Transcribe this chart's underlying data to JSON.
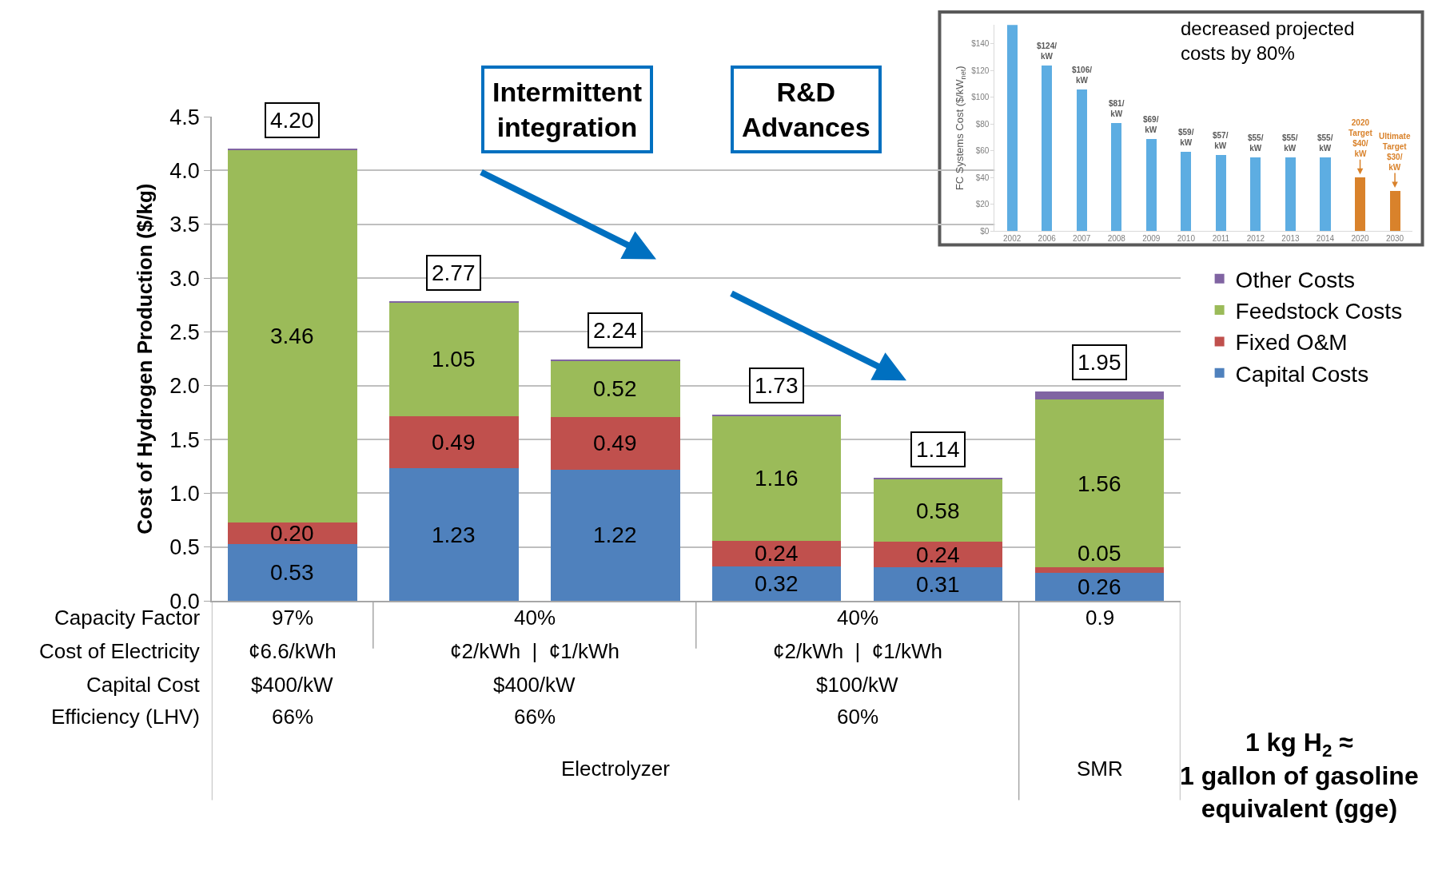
{
  "chart_data": [
    {
      "type": "bar",
      "stacked": true,
      "ylabel": "Cost of Hydrogen Production ($/kg)",
      "categories": [
        null,
        null,
        null,
        null,
        null,
        null
      ],
      "series": [
        {
          "name": "Capital Costs",
          "color": "#4f81bd",
          "values": [
            0.53,
            1.23,
            1.22,
            0.32,
            0.31,
            0.26
          ],
          "value_labels": [
            "0.53",
            "1.23",
            "1.22",
            "0.32",
            "0.31",
            "0.26"
          ]
        },
        {
          "name": "Fixed O&M",
          "color": "#c0504d",
          "values": [
            0.2,
            0.49,
            0.49,
            0.24,
            0.24,
            0.05
          ],
          "value_labels": [
            "0.20",
            "0.49",
            "0.49",
            "0.24",
            "0.24",
            "0.05"
          ]
        },
        {
          "name": "Feedstock Costs",
          "color": "#9bbb59",
          "values": [
            3.46,
            1.05,
            0.52,
            1.16,
            0.58,
            1.56
          ],
          "value_labels": [
            "3.46",
            "1.05",
            "0.52",
            "1.16",
            "0.58",
            "1.56"
          ]
        },
        {
          "name": "Other Costs",
          "color": "#8064a2",
          "values": [
            0.01,
            0.01,
            0.01,
            0.01,
            0.01,
            0.08
          ]
        }
      ],
      "totals": [
        "4.20",
        "2.77",
        "2.24",
        "1.73",
        "1.14",
        "1.95"
      ],
      "ylim": [
        0,
        4.5
      ],
      "yticks": [
        {
          "value": 0,
          "label": "0.0"
        },
        {
          "value": 0.5,
          "label": "0.5"
        },
        {
          "value": 1,
          "label": "1.0"
        },
        {
          "value": 1.5,
          "label": "1.5"
        },
        {
          "value": 2,
          "label": "2.0"
        },
        {
          "value": 2.5,
          "label": "2.5"
        },
        {
          "value": 3,
          "label": "3.0"
        },
        {
          "value": 3.5,
          "label": "3.5"
        },
        {
          "value": 4,
          "label": "4.0"
        },
        {
          "value": 4.5,
          "label": "4.5"
        }
      ],
      "grid": "y",
      "legend": "right",
      "annotations": [
        "Capacity Factor",
        "Cost of Electricity",
        "Capital Cost",
        "Efficiency (LHV)",
        "97%",
        "¢6.6/kWh",
        "$400/kW",
        "66%",
        "40%",
        "¢2/kWh  |  ¢1/kWh",
        "$400/kW",
        "66%",
        "40%",
        "¢2/kWh  |  ¢1/kWh",
        "$100/kW",
        "60%",
        "0.9",
        "Electrolyzer",
        "SMR",
        "Intermittent\nintegration",
        "R&D\nAdvances",
        "1 kg H$_{2}$ ≈\n1 gallon of gasoline\nequivalent (gge)"
      ]
    },
    {
      "type": "bar",
      "ylabel": "FC Systems Cost ($/kW$_{net}$)",
      "categories": [
        "2002",
        "2006",
        "2007",
        "2008",
        "2009",
        "2010",
        "2011",
        "2012",
        "2013",
        "2014",
        "2020",
        "2030"
      ],
      "values": [
        154,
        124,
        106,
        81,
        69,
        59,
        57,
        55,
        55,
        55,
        40,
        30
      ],
      "colors": [
        "#5dade2",
        "#5dade2",
        "#5dade2",
        "#5dade2",
        "#5dade2",
        "#5dade2",
        "#5dade2",
        "#5dade2",
        "#5dade2",
        "#5dade2",
        "#d9822b",
        "#d9822b"
      ],
      "value_labels": [
        null,
        "$124/\nkW",
        "$106/\nkW",
        "$81/\nkW",
        "$69/\nkW",
        "$59/\nkW",
        "$57/\nkW",
        "$55/\nkW",
        "$55/\nkW",
        "$55/\nkW",
        null,
        null
      ],
      "ylim": [
        0,
        154
      ],
      "yticks": [
        {
          "value": 0,
          "label": "$0"
        },
        {
          "value": 20,
          "label": "$20"
        },
        {
          "value": 40,
          "label": "$40"
        },
        {
          "value": 60,
          "label": "$60"
        },
        {
          "value": 80,
          "label": "$80"
        },
        {
          "value": 100,
          "label": "$100"
        },
        {
          "value": 120,
          "label": "$120"
        },
        {
          "value": 140,
          "label": "$140"
        }
      ],
      "grid": false,
      "legend": false,
      "annotations": [
        "decreased projected\ncosts by 80%",
        {
          "text": "2020\nTarget\n$40/\nkW",
          "x": "2020",
          "y": 40
        },
        {
          "text": "Ultimate\nTarget\n$30/\nkW",
          "x": "2030",
          "y": 30
        }
      ]
    }
  ]
}
